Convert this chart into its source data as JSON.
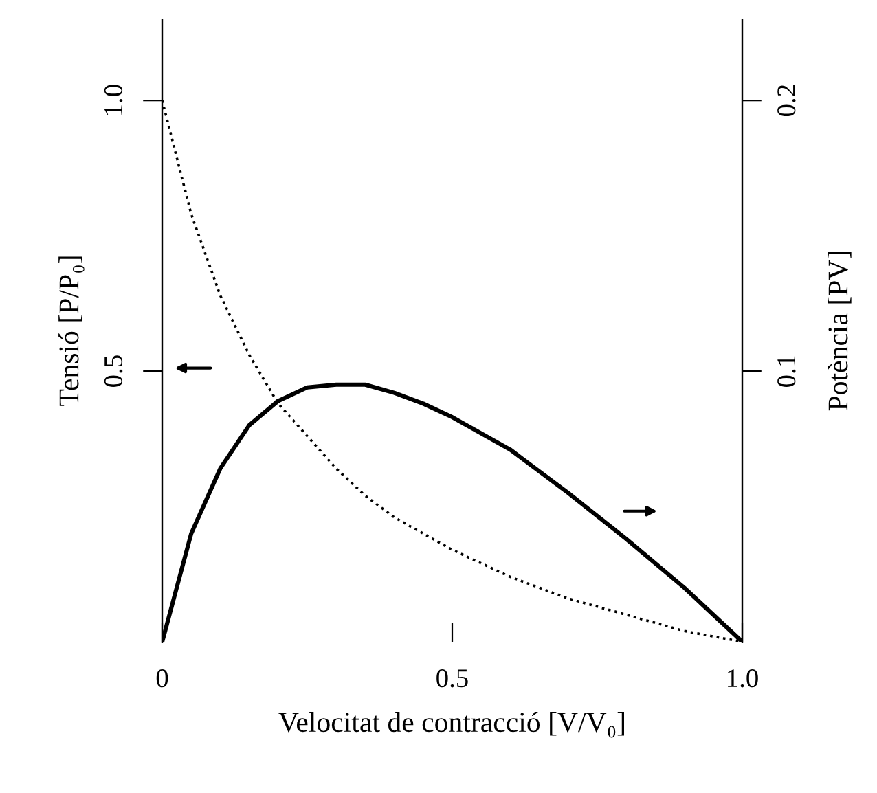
{
  "chart_data": {
    "type": "line",
    "xlabel": "Velocitat de contracció [V/V₀]",
    "ylabel": "Tensió [P/P₀]",
    "y2label": "Potència [PV]",
    "x": [
      0,
      0.05,
      0.1,
      0.15,
      0.2,
      0.25,
      0.3,
      0.35,
      0.4,
      0.45,
      0.5,
      0.6,
      0.7,
      0.8,
      0.9,
      1.0
    ],
    "series": [
      {
        "color": "#000000",
        "line_style": "dotted",
        "values": [
          1.0,
          0.79,
          0.64,
          0.53,
          0.44,
          0.38,
          0.32,
          0.27,
          0.23,
          0.2,
          0.17,
          0.12,
          0.08,
          0.05,
          0.02,
          0
        ]
      },
      {
        "color": "#000000",
        "line_style": "solid",
        "axis": "y2",
        "values": [
          0,
          0.04,
          0.064,
          0.08,
          0.089,
          0.094,
          0.095,
          0.095,
          0.092,
          0.088,
          0.083,
          0.071,
          0.055,
          0.038,
          0.02,
          0
        ]
      }
    ],
    "xlim": [
      0,
      1.0
    ],
    "xticks": [
      0,
      0.5,
      {
        "value": 1.0,
        "label": "1.0"
      }
    ],
    "ylim": [
      0,
      1.15
    ],
    "yticks": [
      0.5,
      {
        "value": 1.0,
        "label": "1.0"
      }
    ],
    "y2lim": [
      0,
      0.23
    ],
    "y2ticks": [
      0.1,
      0.2
    ],
    "grid": false,
    "legend": false,
    "marker": "none"
  }
}
